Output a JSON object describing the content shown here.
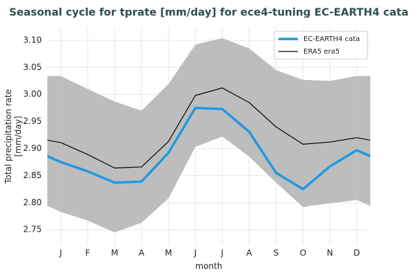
{
  "chart_data": {
    "type": "line",
    "title": "Seasonal cycle for tprate [mm/day] for ece4-tuning EC-EARTH4 cata",
    "y_label": "Total precipitation rate\n[mm/day]",
    "x_label": "month",
    "x": [
      1,
      2,
      3,
      4,
      5,
      6,
      7,
      8,
      9,
      10,
      11,
      12
    ],
    "xlim": [
      0.5,
      12.5
    ],
    "xticks": [
      {
        "value": 1,
        "label": "J"
      },
      {
        "value": 2,
        "label": "F"
      },
      {
        "value": 3,
        "label": "M"
      },
      {
        "value": 4,
        "label": "A"
      },
      {
        "value": 5,
        "label": "M"
      },
      {
        "value": 6,
        "label": "J"
      },
      {
        "value": 7,
        "label": "J"
      },
      {
        "value": 8,
        "label": "A"
      },
      {
        "value": 9,
        "label": "S"
      },
      {
        "value": 10,
        "label": "O"
      },
      {
        "value": 11,
        "label": "N"
      },
      {
        "value": 12,
        "label": "D"
      }
    ],
    "ylim": [
      2.722,
      3.123
    ],
    "yticks": [
      {
        "value": 2.75,
        "label": "2.75"
      },
      {
        "value": 2.8,
        "label": "2.80"
      },
      {
        "value": 2.85,
        "label": "2.85"
      },
      {
        "value": 2.9,
        "label": "2.90"
      },
      {
        "value": 2.95,
        "label": "2.95"
      },
      {
        "value": 3.0,
        "label": "3.00"
      },
      {
        "value": 3.05,
        "label": "3.05"
      },
      {
        "value": 3.1,
        "label": "3.10"
      }
    ],
    "grid": true,
    "legend": "upper right",
    "band": {
      "color": "#bdbdbd",
      "upper": [
        3.034,
        3.01,
        2.987,
        2.97,
        3.019,
        3.092,
        3.104,
        3.085,
        3.045,
        3.027,
        3.025,
        3.034
      ],
      "lower": [
        2.783,
        2.767,
        2.745,
        2.763,
        2.808,
        2.903,
        2.922,
        2.885,
        2.837,
        2.792,
        2.799,
        2.805
      ]
    },
    "series": [
      {
        "name": "EC-EARTH4 cata",
        "color": "#1f9ae0",
        "width": 3.5,
        "values": [
          2.875,
          2.858,
          2.837,
          2.839,
          2.892,
          2.975,
          2.973,
          2.931,
          2.855,
          2.825,
          2.867,
          2.897
        ]
      },
      {
        "name": "ERA5 era5",
        "color": "#000000",
        "width": 1.2,
        "values": [
          2.911,
          2.889,
          2.864,
          2.866,
          2.913,
          2.998,
          3.012,
          2.985,
          2.94,
          2.908,
          2.912,
          2.92
        ]
      }
    ]
  }
}
